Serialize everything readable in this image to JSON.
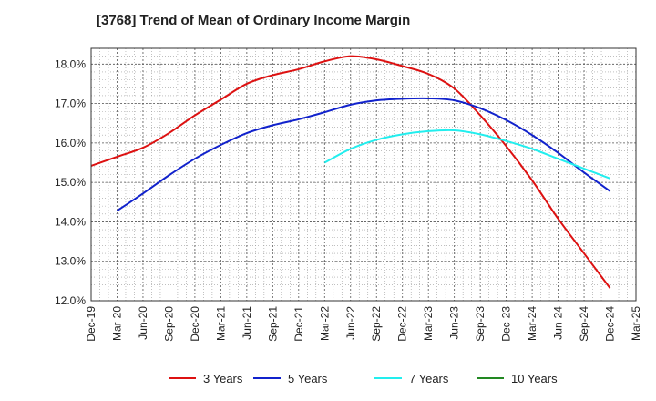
{
  "chart_data": {
    "type": "line",
    "title": "[3768]  Trend of Mean of Ordinary Income Margin",
    "xlabel": "",
    "ylabel": "",
    "x_ticks": [
      "Dec-19",
      "Mar-20",
      "Jun-20",
      "Sep-20",
      "Dec-20",
      "Mar-21",
      "Jun-21",
      "Sep-21",
      "Dec-21",
      "Mar-22",
      "Jun-22",
      "Sep-22",
      "Dec-22",
      "Mar-23",
      "Jun-23",
      "Sep-23",
      "Dec-23",
      "Mar-24",
      "Jun-24",
      "Sep-24",
      "Dec-24",
      "Mar-25"
    ],
    "y_ticks": [
      "12.0%",
      "13.0%",
      "14.0%",
      "15.0%",
      "16.0%",
      "17.0%",
      "18.0%"
    ],
    "ylim": [
      12.0,
      18.4
    ],
    "grid": true,
    "legend_position": "bottom",
    "series": [
      {
        "name": "3 Years",
        "color": "#dd1111",
        "x": [
          "Dec-19",
          "Mar-20",
          "Jun-20",
          "Sep-20",
          "Dec-20",
          "Mar-21",
          "Jun-21",
          "Sep-21",
          "Dec-21",
          "Mar-22",
          "Jun-22",
          "Sep-22",
          "Dec-22",
          "Mar-23",
          "Jun-23",
          "Sep-23",
          "Dec-23",
          "Mar-24",
          "Jun-24",
          "Sep-24",
          "Dec-24"
        ],
        "values": [
          15.42,
          15.65,
          15.88,
          16.25,
          16.7,
          17.1,
          17.5,
          17.72,
          17.87,
          18.07,
          18.2,
          18.12,
          17.95,
          17.75,
          17.38,
          16.7,
          15.92,
          15.05,
          14.08,
          13.2,
          12.32
        ]
      },
      {
        "name": "5 Years",
        "color": "#1122cc",
        "x": [
          "Mar-20",
          "Jun-20",
          "Sep-20",
          "Dec-20",
          "Mar-21",
          "Jun-21",
          "Sep-21",
          "Dec-21",
          "Mar-22",
          "Jun-22",
          "Sep-22",
          "Dec-22",
          "Mar-23",
          "Jun-23",
          "Sep-23",
          "Dec-23",
          "Mar-24",
          "Jun-24",
          "Sep-24",
          "Dec-24"
        ],
        "values": [
          14.28,
          14.72,
          15.18,
          15.6,
          15.95,
          16.25,
          16.45,
          16.6,
          16.78,
          16.97,
          17.08,
          17.12,
          17.13,
          17.08,
          16.88,
          16.58,
          16.2,
          15.75,
          15.25,
          14.78
        ]
      },
      {
        "name": "7 Years",
        "color": "#22eeee",
        "x": [
          "Mar-22",
          "Jun-22",
          "Sep-22",
          "Dec-22",
          "Mar-23",
          "Jun-23",
          "Sep-23",
          "Dec-23",
          "Mar-24",
          "Jun-24",
          "Sep-24",
          "Dec-24"
        ],
        "values": [
          15.5,
          15.85,
          16.08,
          16.22,
          16.3,
          16.32,
          16.22,
          16.05,
          15.85,
          15.6,
          15.35,
          15.1
        ]
      },
      {
        "name": "10 Years",
        "color": "#228822",
        "x": [],
        "values": []
      }
    ]
  }
}
